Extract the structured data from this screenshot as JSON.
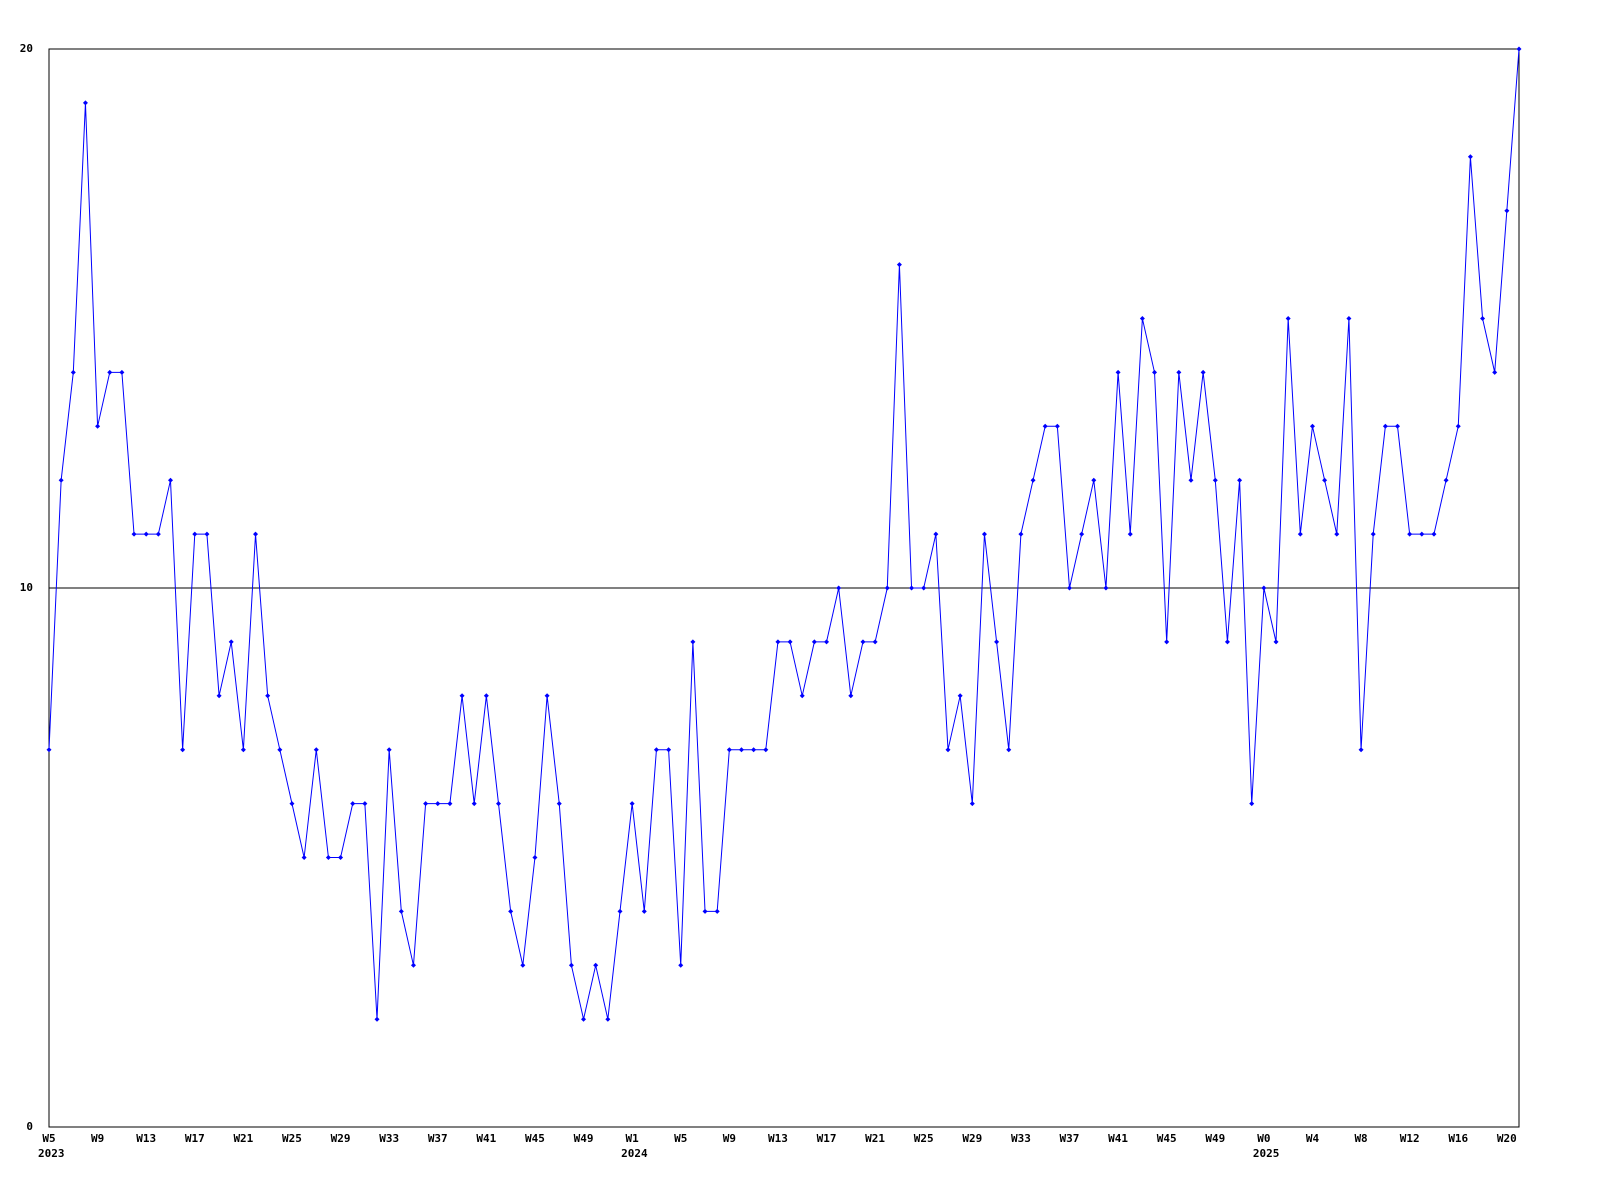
{
  "chart_data": {
    "type": "line",
    "categories": [
      "W5",
      null,
      null,
      null,
      "W9",
      null,
      null,
      null,
      "W13",
      null,
      null,
      null,
      "W17",
      null,
      null,
      null,
      "W21",
      null,
      null,
      null,
      "W25",
      null,
      null,
      null,
      "W29",
      null,
      null,
      null,
      "W33",
      null,
      null,
      null,
      "W37",
      null,
      null,
      null,
      "W41",
      null,
      null,
      null,
      "W45",
      null,
      null,
      null,
      "W49",
      null,
      null,
      null,
      "W1",
      null,
      null,
      null,
      "W5",
      null,
      null,
      null,
      "W9",
      null,
      null,
      null,
      "W13",
      null,
      null,
      null,
      "W17",
      null,
      null,
      null,
      "W21",
      null,
      null,
      null,
      "W25",
      null,
      null,
      null,
      "W29",
      null,
      null,
      null,
      "W33",
      null,
      null,
      null,
      "W37",
      null,
      null,
      null,
      "W41",
      null,
      null,
      null,
      "W45",
      null,
      null,
      null,
      "W49",
      null,
      null,
      null,
      "W0",
      null,
      null,
      null,
      "W4",
      null,
      null,
      null,
      "W8",
      null,
      null,
      null,
      "W12",
      null,
      null,
      null,
      "W16",
      null,
      null,
      null,
      "W20",
      null
    ],
    "year_labels": [
      "2023",
      null,
      null,
      null,
      null,
      null,
      null,
      null,
      null,
      null,
      null,
      null,
      null,
      null,
      null,
      null,
      null,
      null,
      null,
      null,
      null,
      null,
      null,
      null,
      null,
      null,
      null,
      null,
      null,
      null,
      null,
      null,
      null,
      null,
      null,
      null,
      null,
      null,
      null,
      null,
      null,
      null,
      null,
      null,
      null,
      null,
      null,
      null,
      "2024",
      null,
      null,
      null,
      null,
      null,
      null,
      null,
      null,
      null,
      null,
      null,
      null,
      null,
      null,
      null,
      null,
      null,
      null,
      null,
      null,
      null,
      null,
      null,
      null,
      null,
      null,
      null,
      null,
      null,
      null,
      null,
      null,
      null,
      null,
      null,
      null,
      null,
      null,
      null,
      null,
      null,
      null,
      null,
      null,
      null,
      null,
      null,
      null,
      null,
      null,
      null,
      "2025",
      null,
      null,
      null,
      null,
      null,
      null,
      null,
      null,
      null,
      null,
      null,
      null,
      null,
      null,
      null,
      null,
      null,
      null,
      null,
      null,
      null
    ],
    "series": [
      {
        "color": "#0000ff",
        "values": [
          7,
          12,
          14,
          19,
          13,
          14,
          14,
          11,
          11,
          11,
          12,
          7,
          11,
          11,
          8,
          9,
          7,
          11,
          8,
          7,
          6,
          5,
          7,
          5,
          5,
          6,
          6,
          2,
          7,
          4,
          3,
          6,
          6,
          6,
          8,
          6,
          8,
          6,
          4,
          3,
          5,
          8,
          6,
          3,
          2,
          3,
          2,
          4,
          6,
          4,
          7,
          7,
          3,
          9,
          4,
          4,
          7,
          7,
          7,
          7,
          9,
          9,
          8,
          9,
          9,
          10,
          8,
          9,
          9,
          10,
          16,
          10,
          10,
          11,
          7,
          8,
          6,
          11,
          9,
          7,
          11,
          12,
          13,
          13,
          10,
          11,
          12,
          10,
          14,
          11,
          15,
          14,
          9,
          14,
          12,
          14,
          12,
          9,
          12,
          6,
          10,
          9,
          15,
          11,
          13,
          12,
          11,
          15,
          7,
          11,
          13,
          13,
          11,
          11,
          11,
          12,
          13,
          18,
          15,
          14,
          17,
          20
        ]
      }
    ],
    "ylim": [
      0,
      20
    ],
    "yticks": [
      0,
      10,
      20
    ],
    "grid": true
  }
}
